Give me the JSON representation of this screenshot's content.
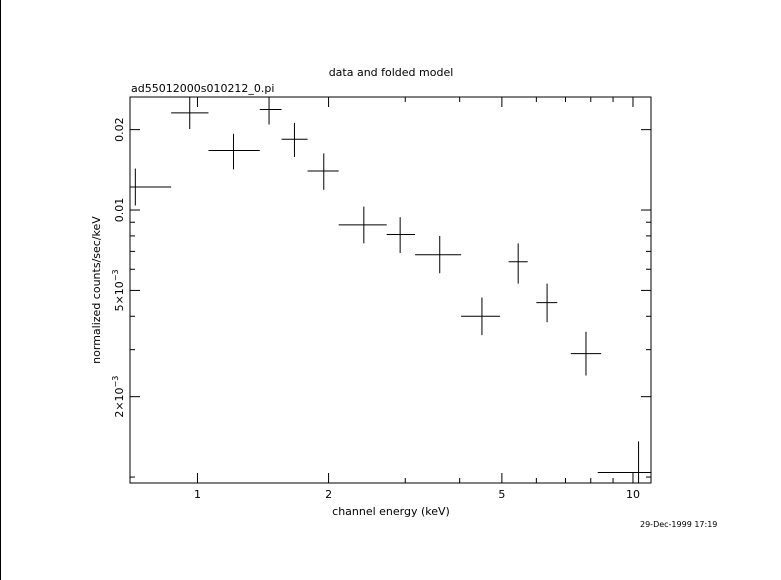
{
  "chart_data": {
    "type": "scatter",
    "title": "data and folded model",
    "subtitle": "ad55012000s010212_0.pi",
    "xlabel": "channel energy (keV)",
    "ylabel": "normalized counts/sec/keV",
    "xscale": "log",
    "yscale": "log",
    "xlim": [
      0.7,
      11
    ],
    "ylim": [
      0.00095,
      0.0265
    ],
    "x_ticks": [
      {
        "value": 1,
        "label": "1"
      },
      {
        "value": 2,
        "label": "2"
      },
      {
        "value": 5,
        "label": "5"
      },
      {
        "value": 10,
        "label": "10"
      }
    ],
    "y_ticks": [
      {
        "value": 0.002,
        "label": "2×10",
        "exp": "−3"
      },
      {
        "value": 0.005,
        "label": "5×10",
        "exp": "−3"
      },
      {
        "value": 0.01,
        "label": "0.01",
        "exp": ""
      },
      {
        "value": 0.02,
        "label": "0.02",
        "exp": ""
      }
    ],
    "grid": false,
    "points": [
      {
        "x": 0.72,
        "xlo": 0.7,
        "xhi": 0.87,
        "y": 0.0122,
        "ylo": 0.0104,
        "yhi": 0.0143
      },
      {
        "x": 0.96,
        "xlo": 0.87,
        "xhi": 1.06,
        "y": 0.0231,
        "ylo": 0.0201,
        "yhi": 0.0267
      },
      {
        "x": 1.21,
        "xlo": 1.06,
        "xhi": 1.39,
        "y": 0.0167,
        "ylo": 0.0142,
        "yhi": 0.0193
      },
      {
        "x": 1.46,
        "xlo": 1.39,
        "xhi": 1.56,
        "y": 0.0238,
        "ylo": 0.0209,
        "yhi": 0.0267
      },
      {
        "x": 1.67,
        "xlo": 1.56,
        "xhi": 1.79,
        "y": 0.0184,
        "ylo": 0.0158,
        "yhi": 0.0212
      },
      {
        "x": 1.95,
        "xlo": 1.79,
        "xhi": 2.11,
        "y": 0.014,
        "ylo": 0.0119,
        "yhi": 0.0163
      },
      {
        "x": 2.41,
        "xlo": 2.11,
        "xhi": 2.72,
        "y": 0.0088,
        "ylo": 0.0075,
        "yhi": 0.0103
      },
      {
        "x": 2.92,
        "xlo": 2.72,
        "xhi": 3.16,
        "y": 0.0081,
        "ylo": 0.0069,
        "yhi": 0.0094
      },
      {
        "x": 3.6,
        "xlo": 3.16,
        "xhi": 4.03,
        "y": 0.0068,
        "ylo": 0.0058,
        "yhi": 0.008
      },
      {
        "x": 4.5,
        "xlo": 4.03,
        "xhi": 4.95,
        "y": 0.004,
        "ylo": 0.0034,
        "yhi": 0.0047
      },
      {
        "x": 5.45,
        "xlo": 5.18,
        "xhi": 5.73,
        "y": 0.0064,
        "ylo": 0.0053,
        "yhi": 0.0075
      },
      {
        "x": 6.35,
        "xlo": 6.0,
        "xhi": 6.7,
        "y": 0.0045,
        "ylo": 0.0038,
        "yhi": 0.0053
      },
      {
        "x": 7.8,
        "xlo": 7.2,
        "xhi": 8.45,
        "y": 0.0029,
        "ylo": 0.0024,
        "yhi": 0.0035
      },
      {
        "x": 10.3,
        "xlo": 8.3,
        "xhi": 11.0,
        "y": 0.00104,
        "ylo": 0.00095,
        "yhi": 0.00136
      }
    ]
  },
  "timestamp": "29-Dec-1999 17:19"
}
